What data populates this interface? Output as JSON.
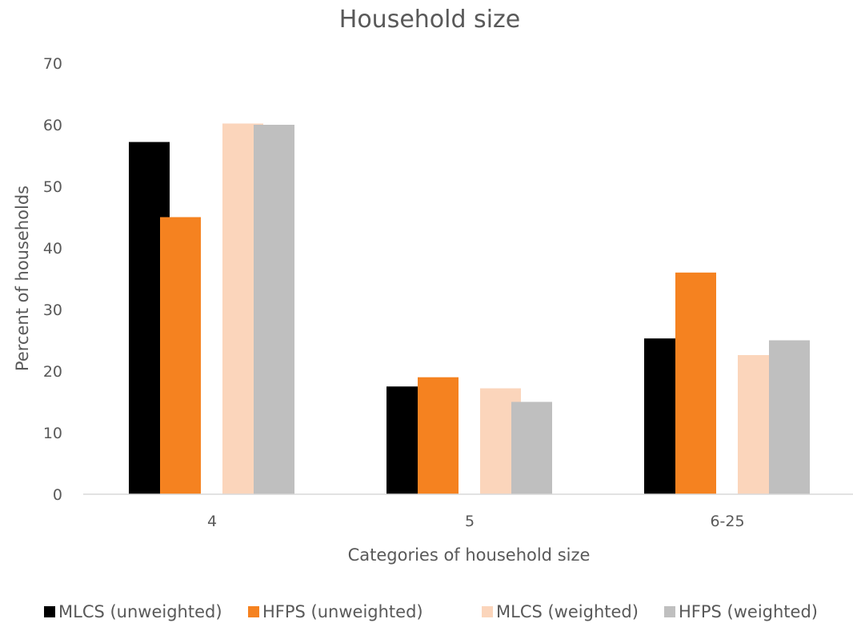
{
  "chart_data": {
    "type": "bar",
    "title": "Household size",
    "xlabel": "Categories of household size",
    "ylabel": "Percent of households",
    "categories": [
      "4",
      "5",
      "6-25"
    ],
    "ylim": [
      0,
      70
    ],
    "yticks": [
      0,
      10,
      20,
      30,
      40,
      50,
      60,
      70
    ],
    "grid": false,
    "legend_position": "bottom",
    "series": [
      {
        "name": "MLCS (unweighted)",
        "color": "#000000",
        "values": [
          57.2,
          17.5,
          25.3
        ]
      },
      {
        "name": "HFPS (unweighted)",
        "color": "#F58220",
        "values": [
          45.0,
          19.0,
          36.0
        ]
      },
      {
        "name": "MLCS (weighted)",
        "color": "#FBD5BB",
        "values": [
          60.2,
          17.2,
          22.6
        ]
      },
      {
        "name": "HFPS (weighted)",
        "color": "#BFBFBF",
        "values": [
          60.0,
          15.0,
          25.0
        ]
      }
    ]
  }
}
